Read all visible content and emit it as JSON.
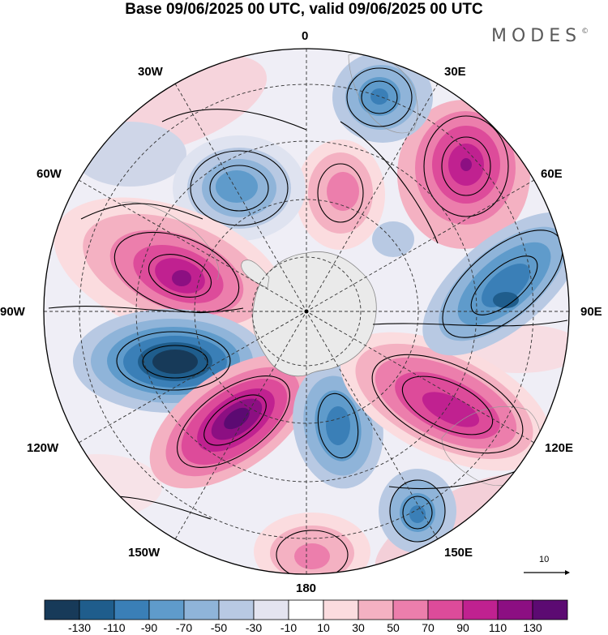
{
  "title": "Base 09/06/2025 00 UTC, valid 09/06/2025 00 UTC",
  "brand": {
    "name": "MODES",
    "mark": "©"
  },
  "longitude_labels": {
    "lon_0": "0",
    "lon_30e": "30E",
    "lon_60e": "60E",
    "lon_90e": "90E",
    "lon_120e": "120E",
    "lon_150e": "150E",
    "lon_180": "180",
    "lon_150w": "150W",
    "lon_120w": "120W",
    "lon_90w": "90W",
    "lon_60w": "60W",
    "lon_30w": "30W"
  },
  "reference_vector": {
    "label": "10"
  },
  "colorbar": {
    "colors": [
      "#173a59",
      "#1f5d8c",
      "#3a7fb7",
      "#5f9bcb",
      "#8fb4d9",
      "#b8c9e3",
      "#e4e4f0",
      "#ffffff",
      "#fbdcdf",
      "#f4b1c2",
      "#ec7eac",
      "#dd4b9a",
      "#c02190",
      "#8c0f82",
      "#5c0a72"
    ],
    "ticks": [
      "-130",
      "-110",
      "-90",
      "-70",
      "-50",
      "-30",
      "-10",
      "10",
      "30",
      "50",
      "70",
      "90",
      "110",
      "130"
    ]
  }
}
